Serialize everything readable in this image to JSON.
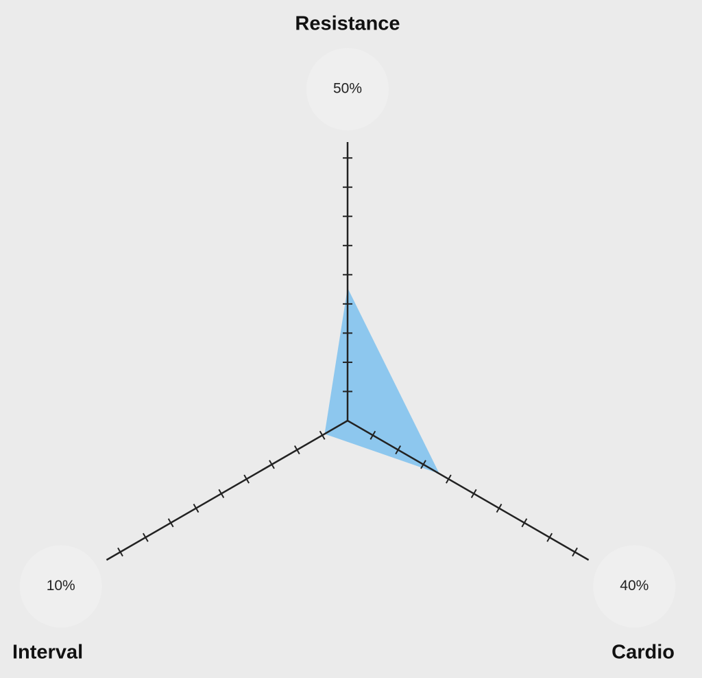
{
  "chart_data": {
    "type": "radar",
    "categories": [
      "Resistance",
      "Cardio",
      "Interval"
    ],
    "values": [
      50,
      40,
      10
    ],
    "value_labels": [
      "50%",
      "40%",
      "10%"
    ],
    "color": "#5ab4f0",
    "rlim": [
      0,
      105
    ],
    "rticks": [
      11,
      22,
      33,
      44,
      55,
      66,
      77,
      88,
      99
    ]
  }
}
